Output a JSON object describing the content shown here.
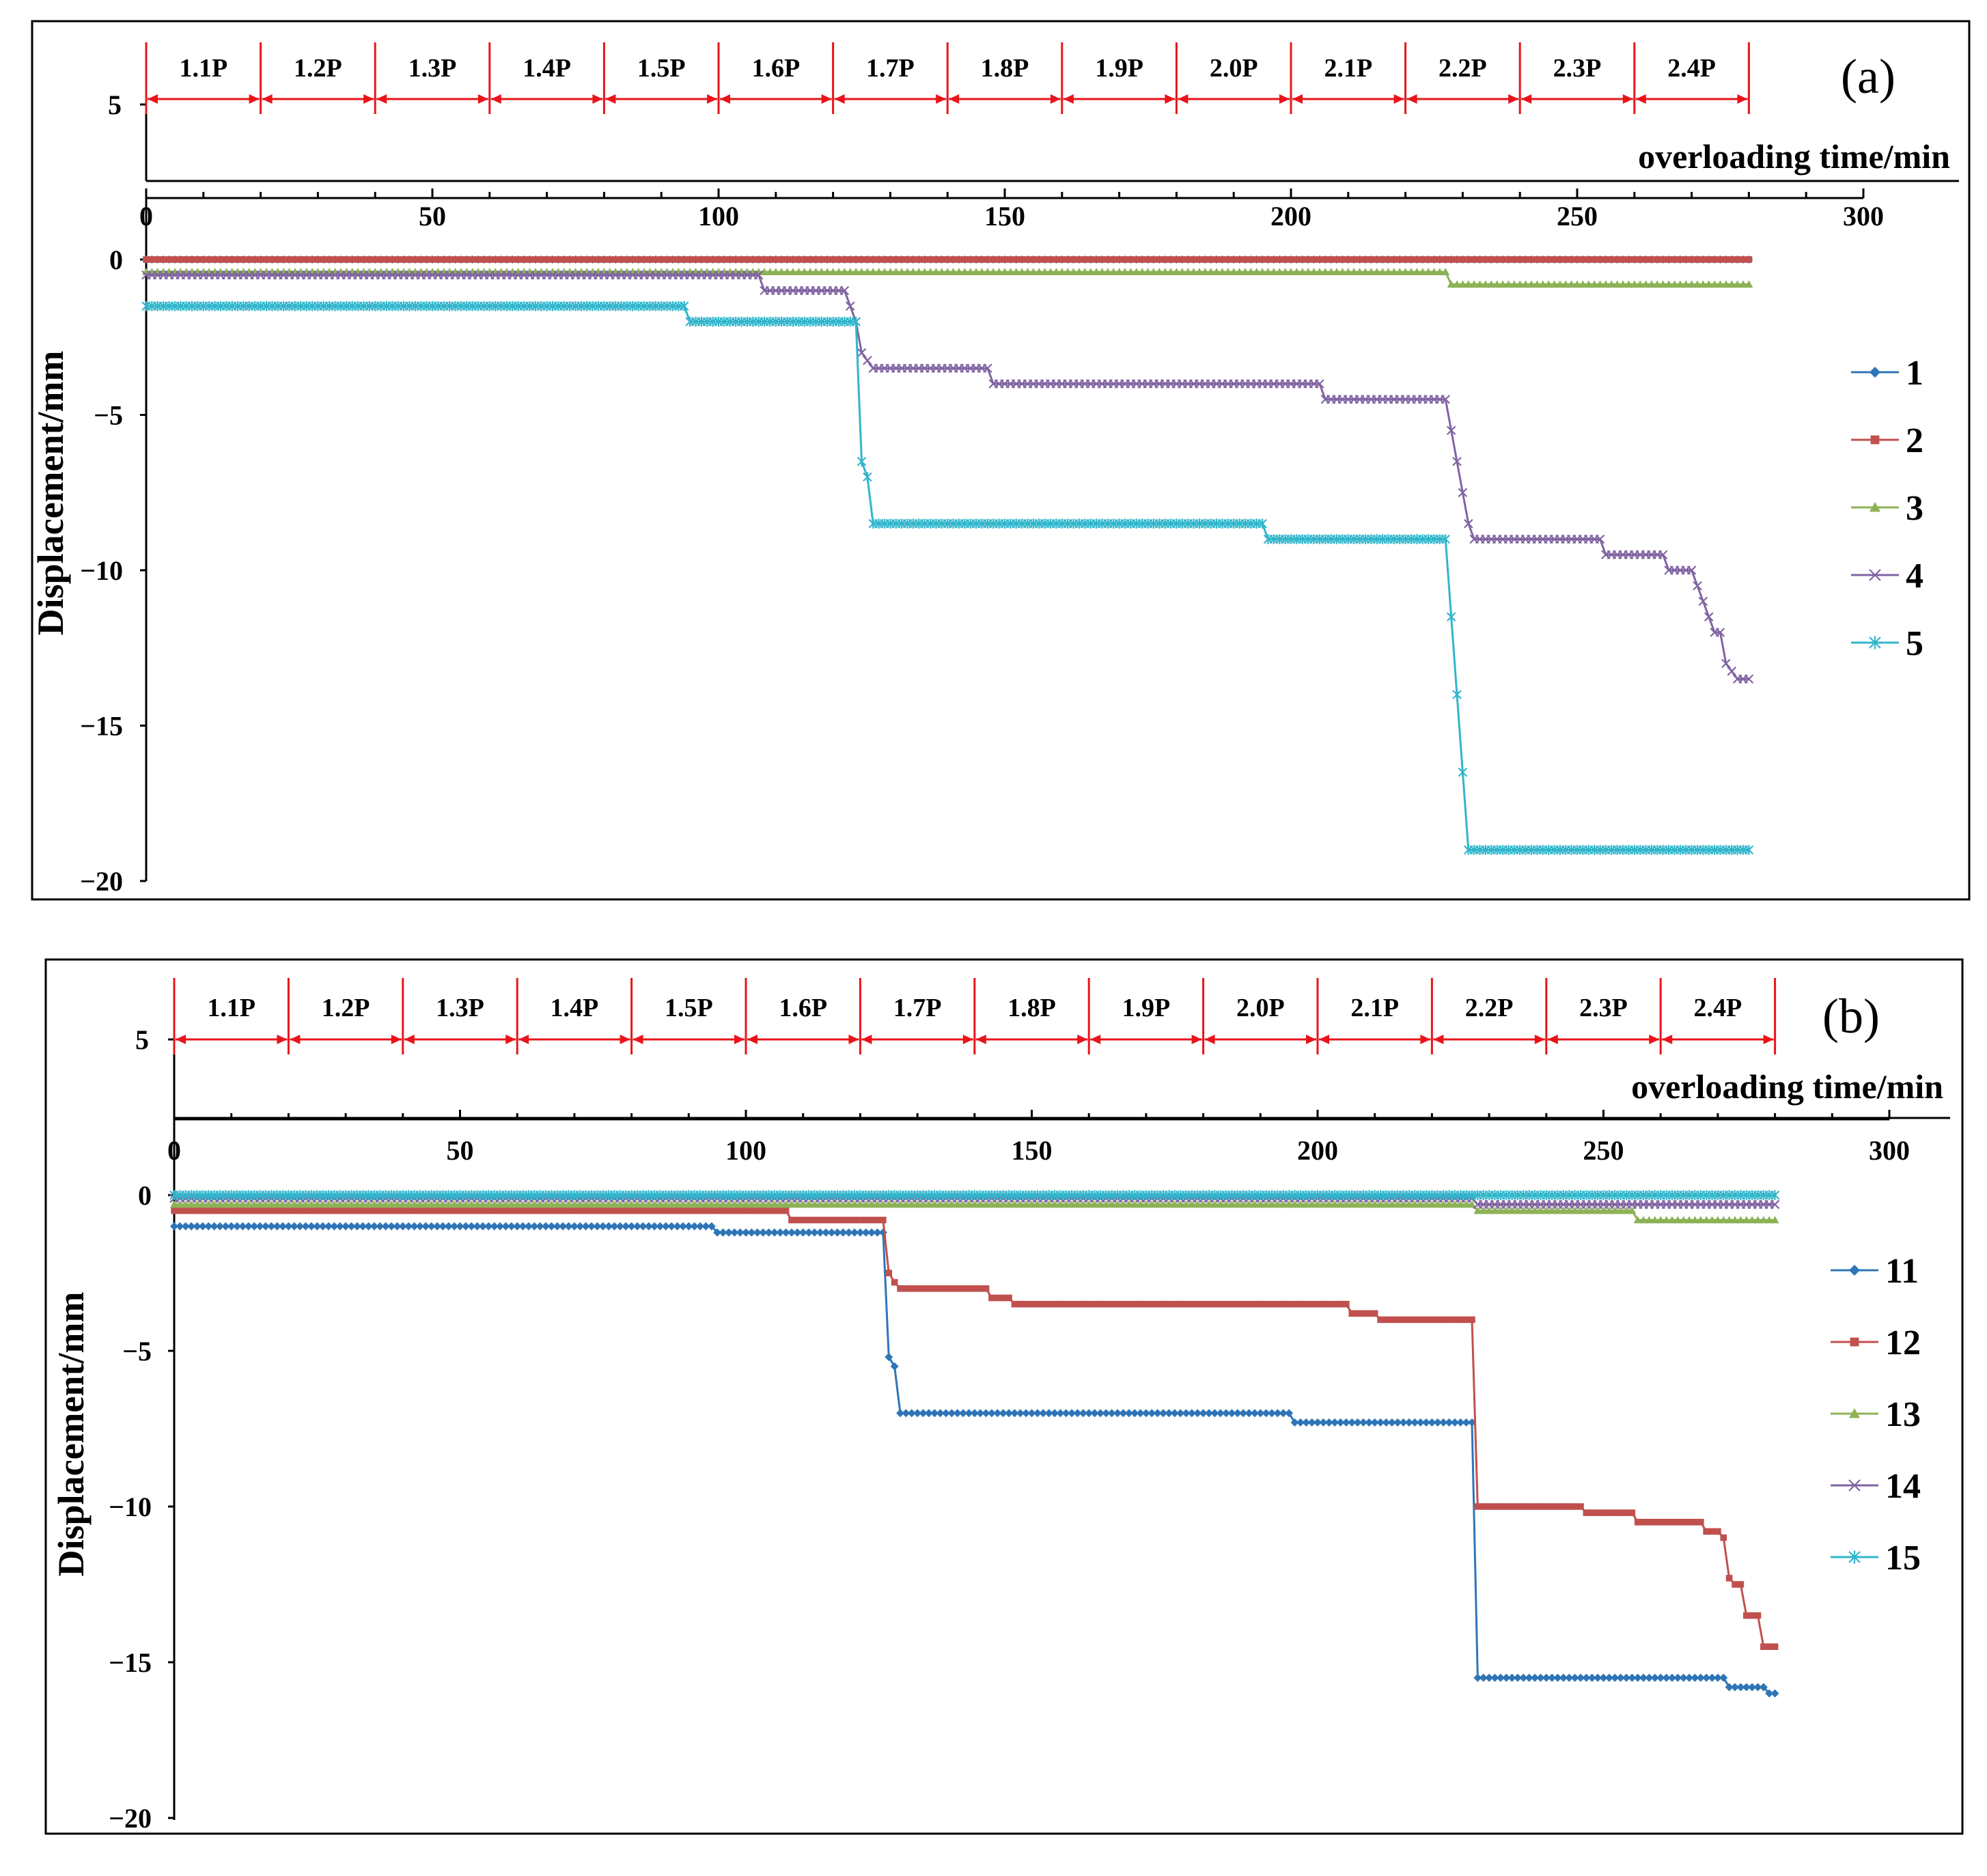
{
  "chart_data": [
    {
      "panel": "(a)",
      "type": "line",
      "title": "",
      "xlabel": "overloading time/min",
      "ylabel": "Displacement/mm",
      "xlim": [
        0,
        300
      ],
      "ylim": [
        -20,
        0
      ],
      "x_ticks": [
        0,
        50,
        100,
        150,
        200,
        250,
        300
      ],
      "y_ticks": [
        0,
        -5,
        -10,
        -15,
        -20
      ],
      "y_tick_labels": [
        "0",
        "−5",
        "−10",
        "−15",
        "−20"
      ],
      "top_axis_tick": "5",
      "stages": [
        "1.1P",
        "1.2P",
        "1.3P",
        "1.4P",
        "1.5P",
        "1.6P",
        "1.7P",
        "1.8P",
        "1.9P",
        "2.0P",
        "2.1P",
        "2.2P",
        "2.3P",
        "2.4P"
      ],
      "stage_duration_min": 20,
      "legend_position": "right",
      "series": [
        {
          "name": "1",
          "color": "#2E75B6",
          "marker": "diamond",
          "x": [
            0,
            280
          ],
          "values": [
            0,
            0
          ]
        },
        {
          "name": "2",
          "color": "#C0504D",
          "marker": "square",
          "x": [
            0,
            280
          ],
          "values": [
            0,
            0
          ]
        },
        {
          "name": "3",
          "color": "#8DB255",
          "marker": "triangle",
          "x": [
            0,
            227,
            228,
            280
          ],
          "values": [
            -0.4,
            -0.4,
            -0.8,
            -0.8
          ]
        },
        {
          "name": "4",
          "color": "#8064A2",
          "marker": "x",
          "x": [
            0,
            107,
            108,
            122,
            123,
            124,
            125,
            127,
            147,
            148,
            205,
            206,
            227,
            228,
            229,
            230,
            231,
            232,
            254,
            255,
            265,
            266,
            270,
            272,
            273,
            274,
            275,
            276,
            278,
            280
          ],
          "values": [
            -0.5,
            -0.5,
            -1.0,
            -1.0,
            -1.5,
            -2.0,
            -3.0,
            -3.5,
            -3.5,
            -4.0,
            -4.0,
            -4.5,
            -4.5,
            -5.5,
            -6.5,
            -7.5,
            -8.5,
            -9.0,
            -9.0,
            -9.5,
            -9.5,
            -10.0,
            -10.0,
            -11.0,
            -11.5,
            -12.0,
            -12.0,
            -13.0,
            -13.5,
            -13.5
          ]
        },
        {
          "name": "5",
          "color": "#31B6CC",
          "marker": "asterisk",
          "x": [
            0,
            94,
            95,
            124,
            125,
            126,
            127,
            195,
            196,
            227,
            228,
            229,
            230,
            231,
            280
          ],
          "values": [
            -1.5,
            -1.5,
            -2.0,
            -2.0,
            -6.5,
            -7.0,
            -8.5,
            -8.5,
            -9.0,
            -9.0,
            -11.5,
            -14.0,
            -16.5,
            -19.0,
            -19.0
          ]
        }
      ]
    },
    {
      "panel": "(b)",
      "type": "line",
      "title": "",
      "xlabel": "overloading time/min",
      "ylabel": "Displacement/mm",
      "xlim": [
        0,
        300
      ],
      "ylim": [
        -20,
        0
      ],
      "x_ticks": [
        0,
        50,
        100,
        150,
        200,
        250,
        300
      ],
      "y_ticks": [
        0,
        -5,
        -10,
        -15,
        -20
      ],
      "y_tick_labels": [
        "0",
        "−5",
        "−10",
        "−15",
        "−20"
      ],
      "top_axis_tick": "5",
      "stages": [
        "1.1P",
        "1.2P",
        "1.3P",
        "1.4P",
        "1.5P",
        "1.6P",
        "1.7P",
        "1.8P",
        "1.9P",
        "2.0P",
        "2.1P",
        "2.2P",
        "2.3P",
        "2.4P"
      ],
      "stage_duration_min": 20,
      "legend_position": "right",
      "series": [
        {
          "name": "11",
          "color": "#2E75B6",
          "marker": "diamond",
          "x": [
            0,
            94,
            95,
            124,
            125,
            126,
            127,
            195,
            196,
            227,
            228,
            271,
            272,
            278,
            279,
            280
          ],
          "values": [
            -1.0,
            -1.0,
            -1.2,
            -1.2,
            -5.2,
            -5.5,
            -7.0,
            -7.0,
            -7.3,
            -7.3,
            -15.5,
            -15.5,
            -15.8,
            -15.8,
            -16.0,
            -16.0
          ]
        },
        {
          "name": "12",
          "color": "#C0504D",
          "marker": "square",
          "x": [
            0,
            107,
            108,
            124,
            125,
            126,
            127,
            142,
            143,
            146,
            147,
            205,
            206,
            210,
            211,
            227,
            228,
            246,
            247,
            255,
            256,
            267,
            268,
            270,
            271,
            272,
            273,
            274,
            275,
            277,
            278,
            280
          ],
          "values": [
            -0.5,
            -0.5,
            -0.8,
            -0.8,
            -2.5,
            -2.8,
            -3.0,
            -3.0,
            -3.3,
            -3.3,
            -3.5,
            -3.5,
            -3.8,
            -3.8,
            -4.0,
            -4.0,
            -10.0,
            -10.0,
            -10.2,
            -10.2,
            -10.5,
            -10.5,
            -10.8,
            -10.8,
            -11.0,
            -12.3,
            -12.5,
            -12.5,
            -13.5,
            -13.5,
            -14.5,
            -14.5
          ]
        },
        {
          "name": "13",
          "color": "#8DB255",
          "marker": "triangle",
          "x": [
            0,
            227,
            228,
            255,
            256,
            280
          ],
          "values": [
            -0.3,
            -0.3,
            -0.5,
            -0.5,
            -0.8,
            -0.8
          ]
        },
        {
          "name": "14",
          "color": "#8064A2",
          "marker": "x",
          "x": [
            0,
            227,
            228,
            280
          ],
          "values": [
            -0.1,
            -0.1,
            -0.3,
            -0.3
          ]
        },
        {
          "name": "15",
          "color": "#31B6CC",
          "marker": "asterisk",
          "x": [
            0,
            280
          ],
          "values": [
            0,
            0
          ]
        }
      ]
    }
  ]
}
